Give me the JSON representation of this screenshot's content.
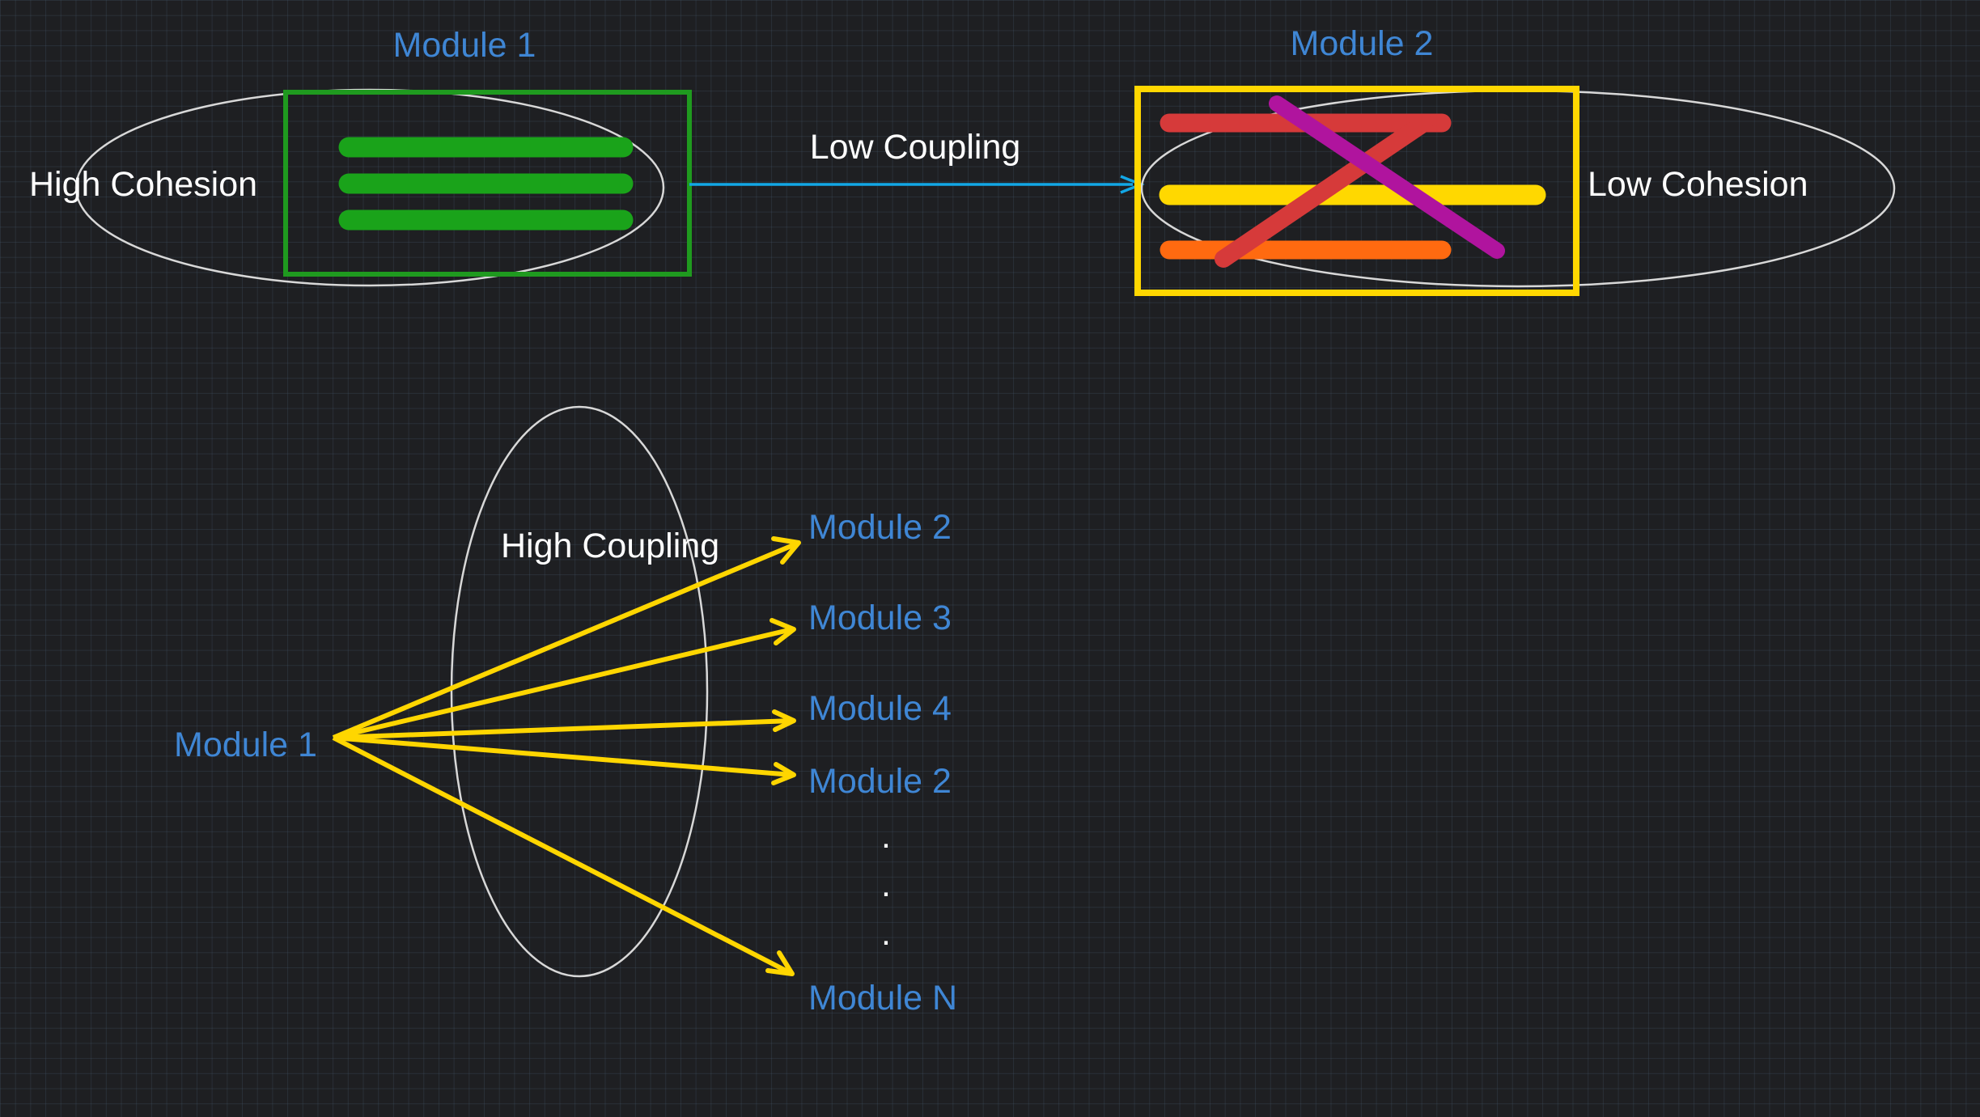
{
  "colors": {
    "background": "#1e1f22",
    "module_label": "#3f86d4",
    "text": "#ffffff",
    "ellipse": "#d8d8d8",
    "high_cohesion_box": "#1f9a1f",
    "high_cohesion_bars": "#1aa31a",
    "low_cohesion_box": "#ffd700",
    "coupling_arrow": "#12a7e6",
    "fan_arrows": "#ffd600",
    "bar_red": "#d63a3a",
    "bar_yellow": "#ffd800",
    "bar_orange": "#ff6a10",
    "bar_purple": "#b0149e"
  },
  "top": {
    "module1_label": "Module 1",
    "module2_label": "Module 2",
    "high_cohesion_label": "High Cohesion",
    "low_cohesion_label": "Low Cohesion",
    "low_coupling_label": "Low Coupling"
  },
  "bottom": {
    "source_label": "Module 1",
    "high_coupling_label": "High Coupling",
    "targets": [
      "Module 2",
      "Module 3",
      "Module 4",
      "Module 2",
      "Module N"
    ],
    "ellipsis_dots": [
      ".",
      ".",
      "."
    ]
  }
}
